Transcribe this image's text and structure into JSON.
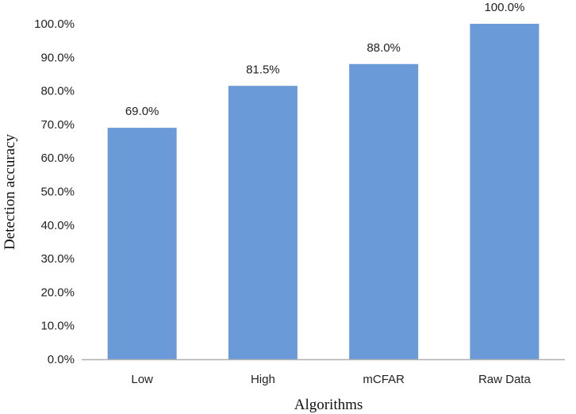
{
  "chart_data": {
    "type": "bar",
    "categories": [
      "Low",
      "High",
      "mCFAR",
      "Raw Data"
    ],
    "values": [
      69.0,
      81.5,
      88.0,
      100.0
    ],
    "data_labels": [
      "69.0%",
      "81.5%",
      "88.0%",
      "100.0%"
    ],
    "title": "",
    "xlabel": "Algorithms",
    "ylabel": "Detection accuracy",
    "ylim": [
      0,
      100
    ],
    "yticks": [
      0,
      10,
      20,
      30,
      40,
      50,
      60,
      70,
      80,
      90,
      100
    ],
    "ytick_labels": [
      "0.0%",
      "10.0%",
      "20.0%",
      "30.0%",
      "40.0%",
      "50.0%",
      "60.0%",
      "70.0%",
      "80.0%",
      "90.0%",
      "100.0%"
    ],
    "grid": false,
    "legend": "none",
    "bar_color": "#6a9bd8",
    "axis_color": "#b0b0b0"
  }
}
